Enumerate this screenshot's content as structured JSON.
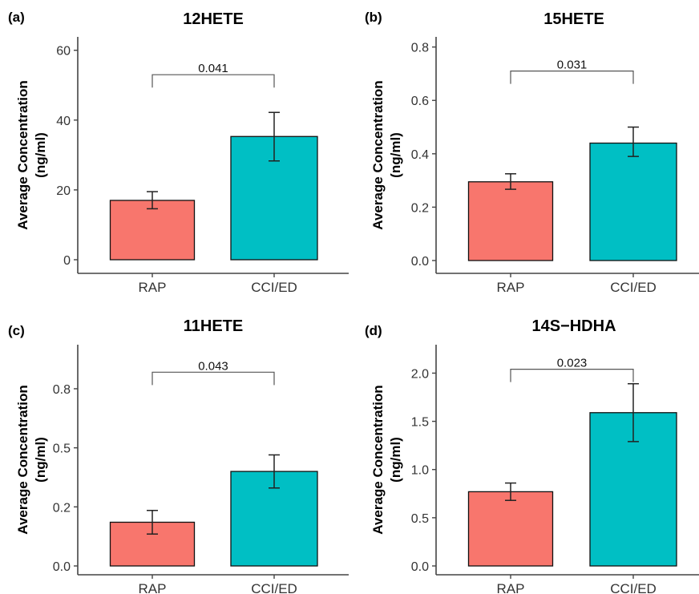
{
  "chart_data": [
    {
      "panel": "(a)",
      "type": "bar",
      "title": "12HETE",
      "ylabel": [
        "Average Concentration",
        "(ng/ml)"
      ],
      "categories": [
        "RAP",
        "CCI/ED"
      ],
      "values": [
        17.0,
        35.3
      ],
      "error_low": [
        14.6,
        28.3
      ],
      "error_high": [
        19.5,
        42.2
      ],
      "colors": [
        "#F8766D",
        "#00BFC4"
      ],
      "ylim": [
        0,
        62
      ],
      "yticks": [
        0,
        20,
        40,
        60
      ],
      "ytick_labels": [
        "0",
        "20",
        "40",
        "60"
      ],
      "bracket_y": 53,
      "p_value": "0.041"
    },
    {
      "panel": "(b)",
      "type": "bar",
      "title": "15HETE",
      "ylabel": [
        "Average Concentration",
        "(ng/ml)"
      ],
      "categories": [
        "RAP",
        "CCI/ED"
      ],
      "values": [
        0.295,
        0.44
      ],
      "error_low": [
        0.267,
        0.39
      ],
      "error_high": [
        0.325,
        0.5
      ],
      "colors": [
        "#F8766D",
        "#00BFC4"
      ],
      "ylim": [
        0,
        0.82
      ],
      "yticks": [
        0.0,
        0.2,
        0.4,
        0.6,
        0.8
      ],
      "ytick_labels": [
        "0.0",
        "0.2",
        "0.4",
        "0.6",
        "0.8"
      ],
      "bracket_y": 0.71,
      "p_value": "0.031"
    },
    {
      "panel": "(c)",
      "type": "bar",
      "title": "11HETE",
      "ylabel": [
        "Average Concentration",
        "(ng/ml)"
      ],
      "categories": [
        "RAP",
        "CCI/ED"
      ],
      "values": [
        0.185,
        0.4
      ],
      "error_low": [
        0.135,
        0.33
      ],
      "error_high": [
        0.235,
        0.47
      ],
      "colors": [
        "#F8766D",
        "#00BFC4"
      ],
      "ylim": [
        0,
        0.95
      ],
      "yticks": [
        0.0,
        0.25,
        0.5,
        0.75
      ],
      "ytick_labels": [
        "0.0",
        "0.2",
        "0.5",
        "0.8"
      ],
      "bracket_y": 0.82,
      "p_value": "0.043"
    },
    {
      "panel": "(d)",
      "type": "bar",
      "title": "14S−HDHA",
      "ylabel": [
        "Average Concentration",
        "(ng/ml)"
      ],
      "categories": [
        "RAP",
        "CCI/ED"
      ],
      "values": [
        0.77,
        1.59
      ],
      "error_low": [
        0.68,
        1.29
      ],
      "error_high": [
        0.86,
        1.89
      ],
      "colors": [
        "#F8766D",
        "#00BFC4"
      ],
      "ylim": [
        0,
        2.27
      ],
      "yticks": [
        0.0,
        0.5,
        1.0,
        1.5,
        2.0
      ],
      "ytick_labels": [
        "0.0",
        "0.5",
        "1.0",
        "1.5",
        "2.0"
      ],
      "bracket_y": 2.04,
      "p_value": "0.023"
    }
  ]
}
